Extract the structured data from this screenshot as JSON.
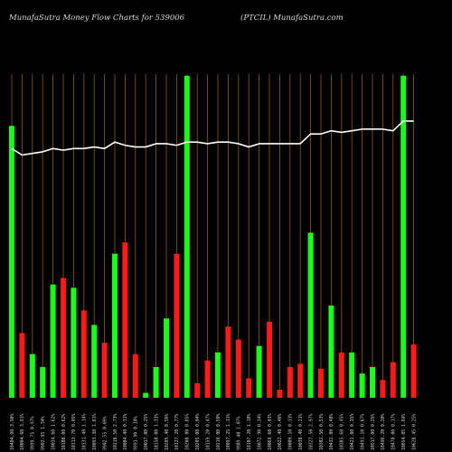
{
  "header": {
    "left": "MunafaSutra  Money Flow  Charts for 539006",
    "right": "(PTCIL) MunafaSutra.com"
  },
  "colors": {
    "background": "#000000",
    "up": "#19ff19",
    "down": "#ff1919",
    "line": "#ffffff",
    "grid": "#8c5a14"
  },
  "chart_data": {
    "type": "bar",
    "price_line": true,
    "bar_value_range": [
      0,
      100
    ],
    "line_value_range": [
      0,
      100
    ],
    "bars": [
      {
        "label": "10404.90 3.98%",
        "value": 84,
        "dir": "up"
      },
      {
        "label": "10004.60 3.91%",
        "value": 20,
        "dir": "down"
      },
      {
        "label": "9999.75 0.97%",
        "value": 13.5,
        "dir": "up"
      },
      {
        "label": "9902.95 1.34%",
        "value": 9.5,
        "dir": "up"
      },
      {
        "label": "10034.60 1.62%",
        "value": 35,
        "dir": "up"
      },
      {
        "label": "10188.00 0.62%",
        "value": 37,
        "dir": "down"
      },
      {
        "label": "10113.70 0.05%",
        "value": 34,
        "dir": "up"
      },
      {
        "label": "10131.40 1.14%",
        "value": 27,
        "dir": "down"
      },
      {
        "label": "10093.30 1.61%",
        "value": 22.5,
        "dir": "up"
      },
      {
        "label": "9902.55 0.09%",
        "value": 17,
        "dir": "down"
      },
      {
        "label": "10218.50 2.73%",
        "value": 44.5,
        "dir": "up"
      },
      {
        "label": "10084.40 0.31%",
        "value": 48,
        "dir": "down"
      },
      {
        "label": "9991.90 0.18%",
        "value": 13.5,
        "dir": "down"
      },
      {
        "label": "10017.00 0.25%",
        "value": 1.5,
        "dir": "up"
      },
      {
        "label": "10150.00 1.33%",
        "value": 9.5,
        "dir": "up"
      },
      {
        "label": "10205.40 0.56%",
        "value": 24.5,
        "dir": "up"
      },
      {
        "label": "10127.20 0.77%",
        "value": 44.5,
        "dir": "down"
      },
      {
        "label": "10208.80 0.85%",
        "value": 99.5,
        "dir": "up"
      },
      {
        "label": "10205.00 0.04%",
        "value": 4.5,
        "dir": "down"
      },
      {
        "label": "10159.20 0.47%",
        "value": 11.5,
        "dir": "down"
      },
      {
        "label": "10210.00 0.50%",
        "value": 14,
        "dir": "up"
      },
      {
        "label": "10097.25 1.11%",
        "value": 22,
        "dir": "down"
      },
      {
        "label": "9989.40 1.07%",
        "value": 18,
        "dir": "down"
      },
      {
        "label": "10107.20 1.18%",
        "value": 6,
        "dir": "down"
      },
      {
        "label": "10072.90 0.34%",
        "value": 16,
        "dir": "up"
      },
      {
        "label": "10069.60 0.03%",
        "value": 23.5,
        "dir": "down"
      },
      {
        "label": "10022.40 0.46%",
        "value": 2.5,
        "dir": "down"
      },
      {
        "label": "10009.10 0.13%",
        "value": 9.5,
        "dir": "down"
      },
      {
        "label": "10030.40 0.21%",
        "value": 10.5,
        "dir": "down"
      },
      {
        "label": "10327.50 2.97%",
        "value": 51,
        "dir": "up"
      },
      {
        "label": "10382.50 0.53%",
        "value": 9,
        "dir": "down"
      },
      {
        "label": "10432.80 0.48%",
        "value": 28.5,
        "dir": "up"
      },
      {
        "label": "10385.60 0.45%",
        "value": 14,
        "dir": "down"
      },
      {
        "label": "10421.80 0.35%",
        "value": 14,
        "dir": "up"
      },
      {
        "label": "10491.10 0.67%",
        "value": 7.5,
        "dir": "up"
      },
      {
        "label": "10517.00 0.25%",
        "value": 9.5,
        "dir": "up"
      },
      {
        "label": "10496.20 0.20%",
        "value": 5.5,
        "dir": "down"
      },
      {
        "label": "10478.00 0.17%",
        "value": 11,
        "dir": "down"
      },
      {
        "label": "10654.85 1.69%",
        "value": 99.5,
        "dir": "up"
      },
      {
        "label": "10628.45 0.25%",
        "value": 16.5,
        "dir": "down"
      }
    ],
    "line": [
      77,
      75,
      75.5,
      76,
      77,
      76.5,
      77,
      77,
      77.5,
      77,
      79,
      78,
      77.5,
      77.5,
      78.5,
      78.5,
      78,
      79,
      79,
      78.5,
      79,
      79,
      78.5,
      77.5,
      78.5,
      78.5,
      78.5,
      78.5,
      78.5,
      81.5,
      81.5,
      82.5,
      82,
      82.5,
      83,
      83,
      83,
      82.5,
      85.5,
      85.5
    ]
  }
}
